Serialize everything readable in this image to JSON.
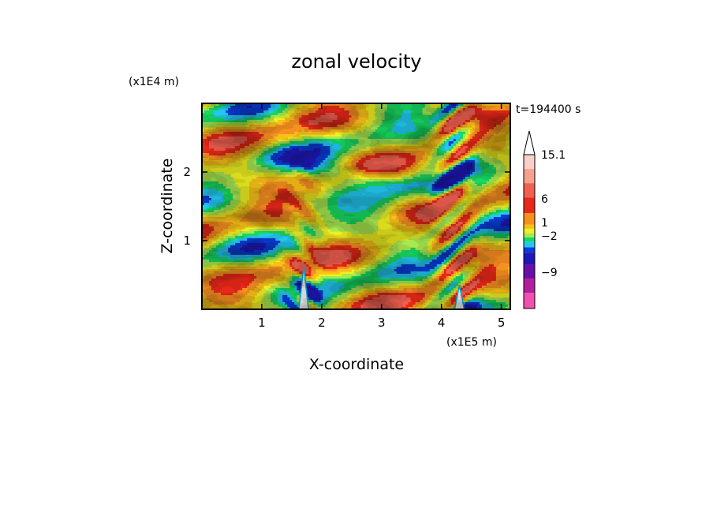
{
  "chart_data": {
    "type": "heatmap",
    "title": "zonal velocity",
    "xlabel": "X-coordinate",
    "ylabel": "Z-coordinate",
    "x_unit": "(x1E5 m)",
    "y_unit": "(x1E4 m)",
    "time_label": "t=194400 s",
    "xlim": [
      0,
      5.15
    ],
    "ylim": [
      0,
      3.0
    ],
    "x_ticks": [
      "1",
      "2",
      "3",
      "4",
      "5"
    ],
    "y_ticks": [
      "1",
      "2"
    ],
    "colorbar": {
      "levels": [
        {
          "color": "#f050b0"
        },
        {
          "color": "#b0209a"
        },
        {
          "color": "#6a10a8"
        },
        {
          "color": "#1f18b8"
        },
        {
          "color": "#0a3cd8"
        },
        {
          "color": "#22c8f0"
        },
        {
          "color": "#18d860"
        },
        {
          "color": "#a8e850"
        },
        {
          "color": "#f0f020"
        },
        {
          "color": "#f8c018"
        },
        {
          "color": "#f89020"
        },
        {
          "color": "#e82818"
        },
        {
          "color": "#f06050"
        },
        {
          "color": "#f8a090"
        },
        {
          "color": "#f8d0c8"
        }
      ],
      "tick_labels": [
        "15.1",
        "6",
        "1",
        "−2",
        "−9"
      ]
    },
    "field_summary": "Alternating positive (orange/red) and negative (blue) zonal velocity bands tilted across the domain, with strong wave activity near two mountain peaks at X about 1.7 and 4.3 (x1E5 m)."
  }
}
